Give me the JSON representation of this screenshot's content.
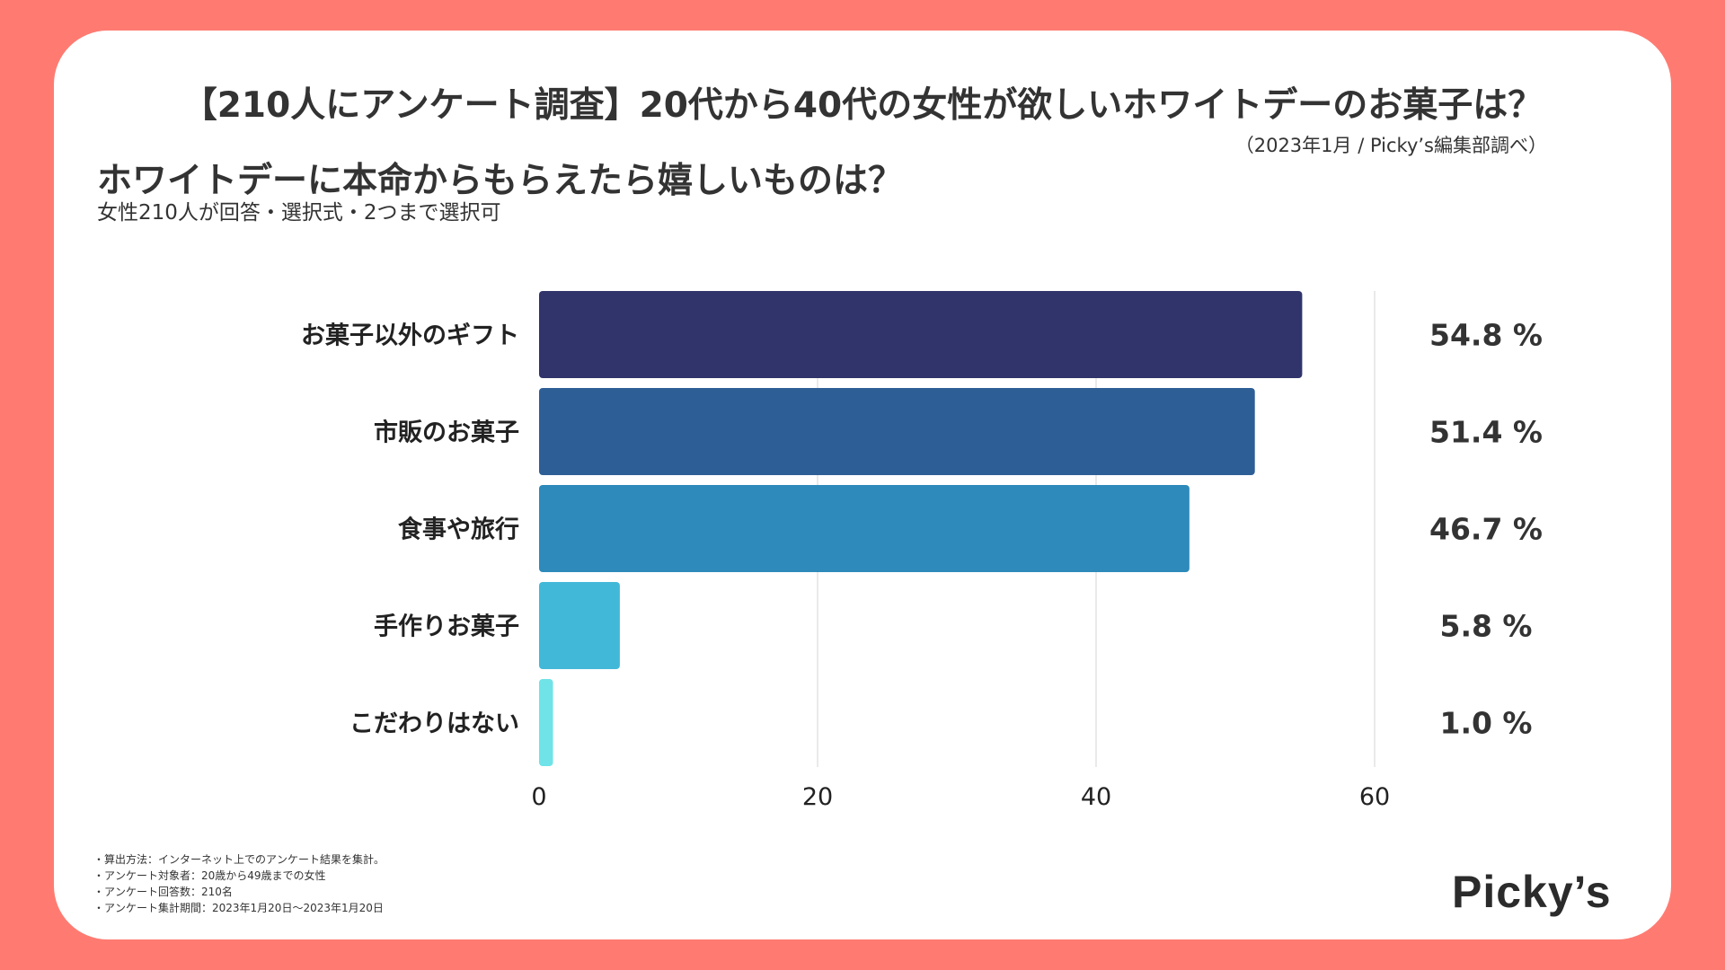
{
  "header": {
    "main_title": "【210人にアンケート調査】20代から40代の女性が欲しいホワイトデーのお菓子は？",
    "source": "（2023年1月 / Picky’s編集部調べ）",
    "subtitle": "ホワイトデーに本命からもらえたら嬉しいものは？",
    "subnote": "女性210人が回答・選択式・2つまで選択可"
  },
  "chart_data": {
    "type": "bar",
    "orientation": "horizontal",
    "categories": [
      "お菓子以外のギフト",
      "市販のお菓子",
      "食事や旅行",
      "手作りお菓子",
      "こだわりはない"
    ],
    "values": [
      54.8,
      51.4,
      46.7,
      5.8,
      1.0
    ],
    "value_labels": [
      "54.8 %",
      "51.4 %",
      "46.7 %",
      "5.8 %",
      "1.0 %"
    ],
    "bar_colors": [
      "#30346B",
      "#2E5E96",
      "#2D8ABA",
      "#42B8D8",
      "#6FE3E8"
    ],
    "xlim": [
      0,
      60
    ],
    "x_ticks": [
      0,
      20,
      40,
      60
    ],
    "x_tick_labels": [
      "0",
      "20",
      "40",
      "60"
    ],
    "grid": "vertical"
  },
  "footer": {
    "notes": [
      "・算出方法：インターネット上でのアンケート結果を集計。",
      "・アンケート対象者：20歳から49歳までの女性",
      "・アンケート回答数：210名",
      "・アンケート集計期間：2023年1月20日〜2023年1月20日"
    ],
    "logo_text": "Picky’s"
  },
  "colors": {
    "background": "#FF7B72",
    "card": "#FFFFFF",
    "text": "#333333"
  }
}
